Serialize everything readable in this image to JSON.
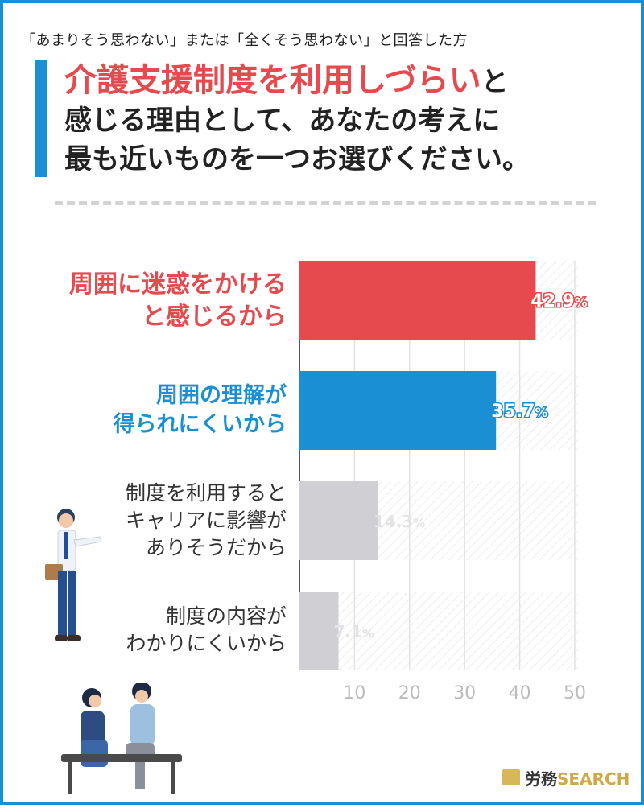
{
  "header": {
    "subtitle": "「あまりそう思わない」または「全くそう思わない」と回答した方",
    "title_highlight": "介護支援制度を利用しづらい",
    "title_line1_tail": "と",
    "title_line2": "感じる理由として、あなたの考えに",
    "title_line3": "最も近いものを一つお選びください。"
  },
  "colors": {
    "accent_red": "#e64a4e",
    "accent_blue": "#1a8fd4",
    "bar_gray": "#cfcfd4",
    "label_dark": "#333333"
  },
  "chart_data": {
    "type": "bar",
    "orientation": "horizontal",
    "categories": [
      "周囲に迷惑をかける\nと感じるから",
      "周囲の理解が\n得られにくいから",
      "制度を利用すると\nキャリアに影響が\nありそうだから",
      "制度の内容が\nわかりにくいから"
    ],
    "values": [
      42.9,
      35.7,
      14.3,
      7.1
    ],
    "value_labels": [
      "42.9%",
      "35.7%",
      "14.3%",
      "7.1%"
    ],
    "bar_colors": [
      "#e64a4e",
      "#1a8fd4",
      "#cfcfd4",
      "#cfcfd4"
    ],
    "label_colors": [
      "#e64a4e",
      "#1a8fd4",
      "#333333",
      "#333333"
    ],
    "xlim": [
      0,
      50
    ],
    "xticks": [
      "10",
      "20",
      "30",
      "40",
      "50"
    ],
    "grid": true
  },
  "logo": {
    "part1": "労務",
    "part2": "SEARCH"
  }
}
